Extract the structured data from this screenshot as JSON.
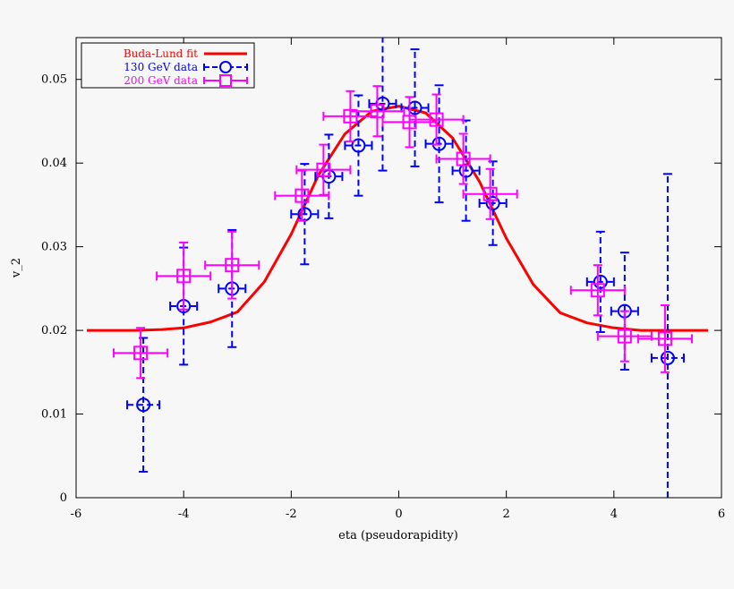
{
  "chart_data": {
    "type": "scatter",
    "xlabel": "eta (pseudorapidity)",
    "ylabel": "v_2",
    "xlim": [
      -6,
      6
    ],
    "ylim": [
      0,
      0.055
    ],
    "x_ticks": [
      "-6",
      "-4",
      "-2",
      "0",
      "2",
      "4",
      "6"
    ],
    "y_ticks": [
      "0",
      "0.01",
      "0.02",
      "0.03",
      "0.04",
      "0.05"
    ],
    "grid": false,
    "legend_position": "top-left",
    "legend": [
      {
        "label": "Buda-Lund fit",
        "color": "#ff0000",
        "style": "line"
      },
      {
        "label": "130 GeV data",
        "color": "#0000ff",
        "style": "circle"
      },
      {
        "label": "200 GeV data",
        "color": "#ff00ff",
        "style": "square"
      }
    ],
    "series": [
      {
        "name": "Buda-Lund fit",
        "kind": "line",
        "color": "#ff0000",
        "x": [
          -5.8,
          -4.9,
          -4.4,
          -4.0,
          -3.5,
          -3.0,
          -2.5,
          -2.0,
          -1.5,
          -1.0,
          -0.5,
          0.0,
          0.5,
          1.0,
          1.5,
          2.0,
          2.5,
          3.0,
          3.5,
          4.0,
          4.5,
          5.0,
          5.75
        ],
        "y": [
          0.02,
          0.02,
          0.0201,
          0.0203,
          0.021,
          0.0222,
          0.0258,
          0.0315,
          0.0385,
          0.0435,
          0.0462,
          0.0468,
          0.046,
          0.043,
          0.0378,
          0.031,
          0.0255,
          0.0221,
          0.0209,
          0.0203,
          0.02,
          0.02,
          0.02
        ]
      },
      {
        "name": "130 GeV data",
        "kind": "points",
        "marker": "circle",
        "color": "#0000ff",
        "x": [
          -4.75,
          -4.0,
          -3.1,
          -1.75,
          -1.3,
          -0.75,
          -0.3,
          0.3,
          0.75,
          1.25,
          1.75,
          3.75,
          4.2,
          5.0
        ],
        "y": [
          0.0111,
          0.0229,
          0.025,
          0.0339,
          0.0384,
          0.0421,
          0.0471,
          0.0466,
          0.0423,
          0.0391,
          0.0352,
          0.0258,
          0.0223,
          0.0167
        ],
        "xerr": [
          0.3,
          0.25,
          0.25,
          0.25,
          0.25,
          0.25,
          0.25,
          0.25,
          0.25,
          0.25,
          0.25,
          0.25,
          0.25,
          0.3
        ],
        "yerr": [
          0.008,
          0.007,
          0.007,
          0.006,
          0.005,
          0.006,
          0.008,
          0.007,
          0.007,
          0.006,
          0.005,
          0.006,
          0.007,
          0.022
        ]
      },
      {
        "name": "200 GeV data",
        "kind": "points",
        "marker": "square",
        "color": "#ff00ff",
        "x": [
          -4.8,
          -4.0,
          -3.1,
          -1.8,
          -1.4,
          -0.9,
          -0.4,
          0.2,
          0.7,
          1.2,
          1.7,
          3.7,
          4.2,
          4.95
        ],
        "y": [
          0.0173,
          0.0265,
          0.0278,
          0.0361,
          0.0392,
          0.0456,
          0.0462,
          0.0449,
          0.0452,
          0.0405,
          0.0363,
          0.0248,
          0.0193,
          0.019
        ],
        "xerr": [
          0.5,
          0.5,
          0.5,
          0.5,
          0.5,
          0.5,
          0.5,
          0.5,
          0.5,
          0.5,
          0.5,
          0.5,
          0.5,
          0.5
        ],
        "yerr": [
          0.003,
          0.004,
          0.004,
          0.003,
          0.003,
          0.003,
          0.003,
          0.003,
          0.003,
          0.003,
          0.003,
          0.003,
          0.003,
          0.004
        ]
      }
    ]
  }
}
